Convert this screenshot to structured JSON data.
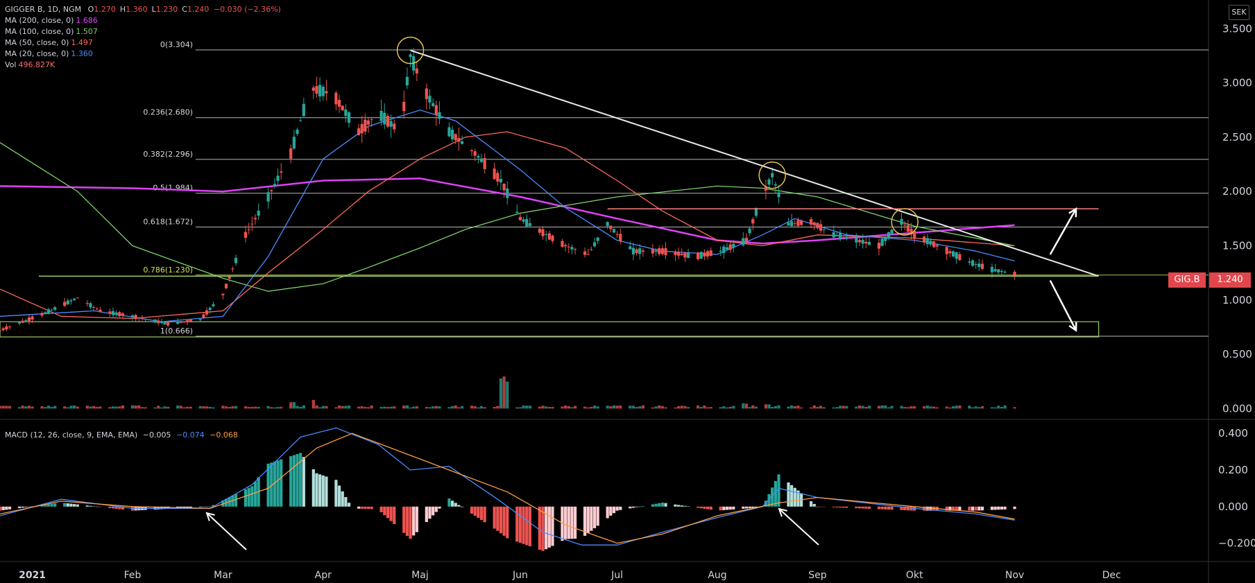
{
  "header": {
    "symbol": "GIGGER B, 1D, NGM",
    "ohlc": [
      {
        "key": "O",
        "value": "1.270"
      },
      {
        "key": "H",
        "value": "1.360"
      },
      {
        "key": "L",
        "value": "1.230"
      },
      {
        "key": "C",
        "value": "1.240"
      }
    ],
    "change": "−0.030 (−2.36%)"
  },
  "indicators": [
    {
      "label": "MA (200, close, 0)",
      "value": "1.686",
      "color": "#e040fb"
    },
    {
      "label": "MA (100, close, 0)",
      "value": "1.507",
      "color": "#7cd36b"
    },
    {
      "label": "MA (50, close, 0)",
      "value": "1.497",
      "color": "#ff6b5b"
    },
    {
      "label": "MA (20, close, 0)",
      "value": "1.360",
      "color": "#4a8cff"
    },
    {
      "label": "Vol",
      "value": "496.827K",
      "color": "#ff6b6b"
    }
  ],
  "macd_legend": {
    "label": "MACD (12, 26, close, 9, EMA, EMA)",
    "hist": "−0.005",
    "macd": "−0.074",
    "signal": "−0.068"
  },
  "currency_button": "SEK",
  "ticker_tag": "GIG.B",
  "last_price_tag": "1.240",
  "colors": {
    "up": "#26a69a",
    "down": "#ef5350",
    "ma200": "#e040fb",
    "ma100": "#7cd36b",
    "ma50": "#ff6b5b",
    "ma20": "#4a8cff",
    "fib": "#d9d9d9",
    "fib786": "#d4e157",
    "resistance": "#ff8080",
    "support_box": "#9ccc65",
    "circle": "#e6c34a"
  },
  "chart_data": {
    "type": "candlestick",
    "title": "GIGGER B, 1D, NGM",
    "currency": "SEK",
    "y_ticks": [
      "3.500",
      "3.000",
      "2.500",
      "2.000",
      "1.500",
      "1.000",
      "0.500",
      "0.000"
    ],
    "y_range": [
      -0.1,
      3.7
    ],
    "macd_ticks": [
      "0.400",
      "0.200",
      "0.000",
      "−0.200"
    ],
    "macd_range": [
      -0.3,
      0.45
    ],
    "x_ticks": [
      "2021",
      "Feb",
      "Mar",
      "Apr",
      "Maj",
      "Jun",
      "Jul",
      "Aug",
      "Sep",
      "Okt",
      "Nov",
      "Dec"
    ],
    "x_tick_dates": [
      "2021-01-01",
      "2021-02-01",
      "2021-03-01",
      "2021-04-01",
      "2021-05-01",
      "2021-06-01",
      "2021-07-01",
      "2021-08-01",
      "2021-09-01",
      "2021-10-01",
      "2021-11-01",
      "2021-12-01"
    ],
    "date_range": [
      "2020-12-22",
      "2021-12-31"
    ],
    "fib_levels": [
      {
        "label": "0(3.304)",
        "value": 3.304
      },
      {
        "label": "0.236(2.680)",
        "value": 2.68
      },
      {
        "label": "0.382(2.296)",
        "value": 2.296
      },
      {
        "label": "0.5(1.984)",
        "value": 1.984
      },
      {
        "label": "0.618(1.672)",
        "value": 1.672
      },
      {
        "label": "0.786(1.230)",
        "value": 1.23
      },
      {
        "label": "1(0.666)",
        "value": 0.666
      }
    ],
    "price_path": [
      [
        "2020-12-22",
        0.72
      ],
      [
        "2021-01-05",
        0.88
      ],
      [
        "2021-01-15",
        1.02
      ],
      [
        "2021-01-22",
        0.9
      ],
      [
        "2021-02-01",
        0.85
      ],
      [
        "2021-02-12",
        0.78
      ],
      [
        "2021-02-22",
        0.82
      ],
      [
        "2021-03-01",
        1.05
      ],
      [
        "2021-03-08",
        1.6
      ],
      [
        "2021-03-15",
        1.95
      ],
      [
        "2021-03-22",
        2.35
      ],
      [
        "2021-03-28",
        2.95
      ],
      [
        "2021-04-04",
        2.9
      ],
      [
        "2021-04-12",
        2.55
      ],
      [
        "2021-04-18",
        2.72
      ],
      [
        "2021-04-25",
        2.55
      ],
      [
        "2021-04-28",
        3.25
      ],
      [
        "2021-05-03",
        2.9
      ],
      [
        "2021-05-10",
        2.55
      ],
      [
        "2021-05-18",
        2.35
      ],
      [
        "2021-05-26",
        2.1
      ],
      [
        "2021-06-01",
        1.75
      ],
      [
        "2021-06-08",
        1.62
      ],
      [
        "2021-06-15",
        1.5
      ],
      [
        "2021-06-22",
        1.42
      ],
      [
        "2021-06-28",
        1.7
      ],
      [
        "2021-07-06",
        1.45
      ],
      [
        "2021-07-15",
        1.45
      ],
      [
        "2021-07-25",
        1.4
      ],
      [
        "2021-08-02",
        1.45
      ],
      [
        "2021-08-10",
        1.55
      ],
      [
        "2021-08-14",
        1.9
      ],
      [
        "2021-08-18",
        2.15
      ],
      [
        "2021-08-23",
        1.7
      ],
      [
        "2021-08-30",
        1.72
      ],
      [
        "2021-09-06",
        1.6
      ],
      [
        "2021-09-13",
        1.55
      ],
      [
        "2021-09-20",
        1.5
      ],
      [
        "2021-09-27",
        1.72
      ],
      [
        "2021-10-01",
        1.6
      ],
      [
        "2021-10-08",
        1.5
      ],
      [
        "2021-10-18",
        1.35
      ],
      [
        "2021-10-25",
        1.28
      ],
      [
        "2021-11-01",
        1.24
      ]
    ],
    "moving_averages": [
      {
        "name": "MA 200",
        "color": "#e040fb",
        "points": [
          [
            "2020-12-22",
            2.05
          ],
          [
            "2021-02-01",
            2.03
          ],
          [
            "2021-03-01",
            2.0
          ],
          [
            "2021-04-01",
            2.1
          ],
          [
            "2021-05-01",
            2.12
          ],
          [
            "2021-06-01",
            1.95
          ],
          [
            "2021-07-01",
            1.75
          ],
          [
            "2021-08-01",
            1.55
          ],
          [
            "2021-08-15",
            1.52
          ],
          [
            "2021-09-01",
            1.55
          ],
          [
            "2021-10-01",
            1.62
          ],
          [
            "2021-11-01",
            1.69
          ]
        ]
      },
      {
        "name": "MA 100",
        "color": "#7cd36b",
        "points": [
          [
            "2020-12-22",
            2.45
          ],
          [
            "2021-01-15",
            2.0
          ],
          [
            "2021-02-01",
            1.5
          ],
          [
            "2021-02-15",
            1.35
          ],
          [
            "2021-03-01",
            1.2
          ],
          [
            "2021-03-15",
            1.08
          ],
          [
            "2021-04-01",
            1.15
          ],
          [
            "2021-04-15",
            1.3
          ],
          [
            "2021-05-01",
            1.48
          ],
          [
            "2021-05-15",
            1.65
          ],
          [
            "2021-06-01",
            1.8
          ],
          [
            "2021-07-01",
            1.95
          ],
          [
            "2021-08-01",
            2.05
          ],
          [
            "2021-08-15",
            2.03
          ],
          [
            "2021-09-01",
            1.95
          ],
          [
            "2021-10-01",
            1.68
          ],
          [
            "2021-11-01",
            1.5
          ]
        ]
      },
      {
        "name": "MA 50",
        "color": "#ff6b5b",
        "points": [
          [
            "2020-12-22",
            1.1
          ],
          [
            "2021-01-10",
            0.85
          ],
          [
            "2021-02-01",
            0.83
          ],
          [
            "2021-03-01",
            0.9
          ],
          [
            "2021-03-15",
            1.25
          ],
          [
            "2021-04-01",
            1.65
          ],
          [
            "2021-04-15",
            2.0
          ],
          [
            "2021-05-01",
            2.3
          ],
          [
            "2021-05-15",
            2.5
          ],
          [
            "2021-05-28",
            2.55
          ],
          [
            "2021-06-15",
            2.4
          ],
          [
            "2021-07-01",
            2.1
          ],
          [
            "2021-07-15",
            1.82
          ],
          [
            "2021-08-01",
            1.55
          ],
          [
            "2021-08-15",
            1.5
          ],
          [
            "2021-09-01",
            1.6
          ],
          [
            "2021-10-01",
            1.57
          ],
          [
            "2021-11-01",
            1.5
          ]
        ]
      },
      {
        "name": "MA 20",
        "color": "#4a8cff",
        "points": [
          [
            "2020-12-22",
            0.85
          ],
          [
            "2021-01-20",
            0.9
          ],
          [
            "2021-02-10",
            0.8
          ],
          [
            "2021-03-01",
            0.85
          ],
          [
            "2021-03-15",
            1.4
          ],
          [
            "2021-04-01",
            2.3
          ],
          [
            "2021-04-15",
            2.6
          ],
          [
            "2021-05-01",
            2.75
          ],
          [
            "2021-05-12",
            2.65
          ],
          [
            "2021-06-01",
            2.2
          ],
          [
            "2021-06-15",
            1.85
          ],
          [
            "2021-07-01",
            1.55
          ],
          [
            "2021-07-15",
            1.45
          ],
          [
            "2021-08-01",
            1.42
          ],
          [
            "2021-08-15",
            1.6
          ],
          [
            "2021-08-25",
            1.75
          ],
          [
            "2021-09-10",
            1.6
          ],
          [
            "2021-10-01",
            1.55
          ],
          [
            "2021-10-20",
            1.45
          ],
          [
            "2021-11-01",
            1.36
          ]
        ]
      }
    ],
    "trendline": {
      "from": [
        "2021-04-28",
        3.3
      ],
      "to": [
        "2021-11-27",
        1.22
      ]
    },
    "support_line": {
      "from": [
        "2021-01-03",
        1.22
      ],
      "to": [
        "2021-11-27",
        1.22
      ]
    },
    "resistance_line": {
      "from": [
        "2021-06-28",
        1.84
      ],
      "to": [
        "2021-11-27",
        1.84
      ]
    },
    "support_box": {
      "from": [
        "2020-12-22",
        0.66
      ],
      "to": [
        "2021-11-27",
        0.8
      ]
    },
    "circles": [
      [
        "2021-04-28",
        3.3
      ],
      [
        "2021-08-18",
        2.15
      ],
      [
        "2021-09-28",
        1.72
      ]
    ],
    "arrows": [
      {
        "from": [
          "2021-11-12",
          1.42
        ],
        "to": [
          "2021-11-20",
          1.84
        ]
      },
      {
        "from": [
          "2021-11-12",
          1.18
        ],
        "to": [
          "2021-11-20",
          0.72
        ]
      }
    ],
    "volume_spikes": [
      [
        "2021-02-01",
        0.03
      ],
      [
        "2021-03-22",
        0.07
      ],
      [
        "2021-03-28",
        0.08
      ],
      [
        "2021-05-27",
        0.3
      ],
      [
        "2021-08-09",
        0.05
      ],
      [
        "2021-08-16",
        0.04
      ]
    ],
    "macd_line": [
      [
        "2020-12-22",
        -0.05
      ],
      [
        "2021-01-10",
        0.04
      ],
      [
        "2021-02-01",
        -0.01
      ],
      [
        "2021-02-25",
        -0.01
      ],
      [
        "2021-03-10",
        0.12
      ],
      [
        "2021-03-25",
        0.38
      ],
      [
        "2021-04-05",
        0.43
      ],
      [
        "2021-04-18",
        0.34
      ],
      [
        "2021-04-28",
        0.2
      ],
      [
        "2021-05-10",
        0.22
      ],
      [
        "2021-05-25",
        0.04
      ],
      [
        "2021-06-08",
        -0.14
      ],
      [
        "2021-06-20",
        -0.21
      ],
      [
        "2021-07-01",
        -0.21
      ],
      [
        "2021-07-15",
        -0.14
      ],
      [
        "2021-08-01",
        -0.06
      ],
      [
        "2021-08-15",
        0.0
      ],
      [
        "2021-08-20",
        0.1
      ],
      [
        "2021-09-01",
        0.05
      ],
      [
        "2021-10-01",
        -0.01
      ],
      [
        "2021-10-20",
        -0.04
      ],
      [
        "2021-11-01",
        -0.074
      ]
    ],
    "signal_line": [
      [
        "2020-12-22",
        -0.04
      ],
      [
        "2021-01-10",
        0.03
      ],
      [
        "2021-02-01",
        0.0
      ],
      [
        "2021-02-25",
        -0.01
      ],
      [
        "2021-03-15",
        0.1
      ],
      [
        "2021-03-30",
        0.32
      ],
      [
        "2021-04-10",
        0.4
      ],
      [
        "2021-04-25",
        0.3
      ],
      [
        "2021-05-10",
        0.2
      ],
      [
        "2021-05-28",
        0.08
      ],
      [
        "2021-06-15",
        -0.1
      ],
      [
        "2021-07-01",
        -0.2
      ],
      [
        "2021-07-15",
        -0.15
      ],
      [
        "2021-08-01",
        -0.05
      ],
      [
        "2021-08-20",
        0.02
      ],
      [
        "2021-09-01",
        0.05
      ],
      [
        "2021-10-01",
        0.0
      ],
      [
        "2021-10-20",
        -0.03
      ],
      [
        "2021-11-01",
        -0.068
      ]
    ]
  }
}
